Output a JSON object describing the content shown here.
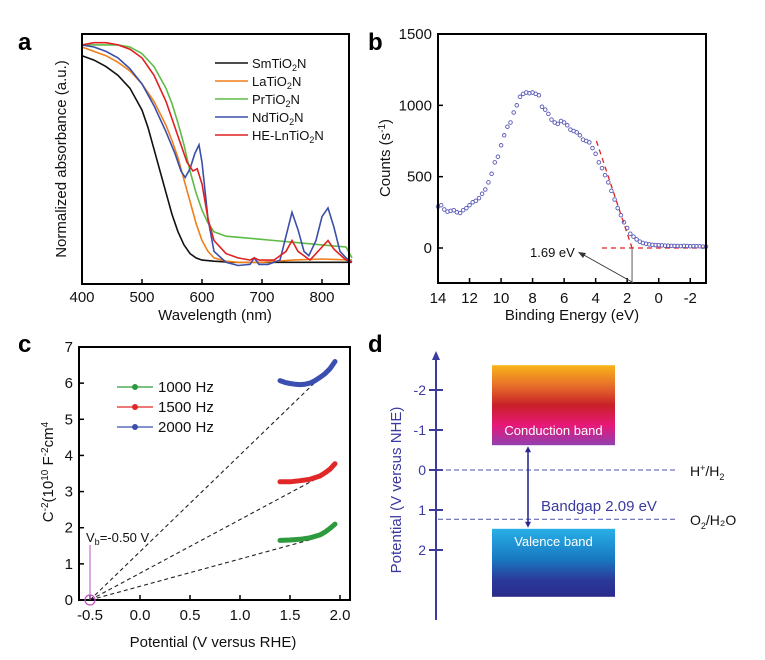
{
  "chart_data": [
    {
      "panel": "a",
      "type": "line",
      "xlabel": "Wavelength (nm)",
      "ylabel": "Normalized absorbance (a.u.)",
      "xlim": [
        400,
        850
      ],
      "ylim": [
        0,
        1.15
      ],
      "xticks": [
        "400",
        "500",
        "600",
        "700",
        "800"
      ],
      "legend_position": "top-right",
      "series": [
        {
          "name": "SmTiO2N",
          "label_main": "SmTiO",
          "label_sub": "2",
          "label_end": "N",
          "color": "#111111",
          "x": [
            400,
            420,
            440,
            460,
            480,
            500,
            510,
            520,
            530,
            540,
            550,
            560,
            570,
            580,
            590,
            600,
            620,
            650,
            700,
            750,
            800,
            850
          ],
          "y": [
            1.05,
            1.03,
            1.0,
            0.96,
            0.9,
            0.8,
            0.72,
            0.62,
            0.52,
            0.42,
            0.32,
            0.24,
            0.18,
            0.14,
            0.12,
            0.11,
            0.105,
            0.1,
            0.1,
            0.1,
            0.1,
            0.1
          ]
        },
        {
          "name": "LaTiO2N",
          "label_main": "LaTiO",
          "label_sub": "2",
          "label_end": "N",
          "color": "#f07f1a",
          "x": [
            400,
            420,
            440,
            460,
            480,
            500,
            520,
            540,
            550,
            560,
            570,
            580,
            590,
            600,
            610,
            620,
            640,
            660,
            700,
            750,
            800,
            850
          ],
          "y": [
            1.09,
            1.07,
            1.05,
            1.02,
            0.98,
            0.92,
            0.84,
            0.73,
            0.66,
            0.58,
            0.48,
            0.38,
            0.28,
            0.2,
            0.15,
            0.12,
            0.105,
            0.1,
            0.1,
            0.11,
            0.115,
            0.11
          ]
        },
        {
          "name": "PrTiO2N",
          "label_main": "PrTiO",
          "label_sub": "2",
          "label_end": "N",
          "color": "#5dbb46",
          "x": [
            400,
            420,
            440,
            460,
            480,
            500,
            520,
            540,
            550,
            560,
            570,
            580,
            590,
            600,
            610,
            620,
            640,
            680,
            720,
            760,
            800,
            840,
            850
          ],
          "y": [
            1.1,
            1.1,
            1.1,
            1.1,
            1.09,
            1.06,
            1.0,
            0.9,
            0.83,
            0.74,
            0.64,
            0.52,
            0.42,
            0.34,
            0.28,
            0.24,
            0.22,
            0.21,
            0.2,
            0.19,
            0.18,
            0.17,
            0.12
          ]
        },
        {
          "name": "NdTiO2N",
          "label_main": "NdTiO",
          "label_sub": "2",
          "label_end": "N",
          "color": "#3b4fa8",
          "x": [
            400,
            420,
            440,
            460,
            480,
            500,
            520,
            540,
            555,
            565,
            572,
            580,
            588,
            595,
            600,
            610,
            620,
            640,
            660,
            680,
            687,
            695,
            710,
            730,
            740,
            750,
            760,
            770,
            778,
            790,
            800,
            810,
            820,
            830,
            840,
            850
          ],
          "y": [
            1.1,
            1.09,
            1.07,
            1.04,
            0.99,
            0.92,
            0.82,
            0.7,
            0.6,
            0.52,
            0.49,
            0.53,
            0.6,
            0.64,
            0.56,
            0.3,
            0.15,
            0.1,
            0.085,
            0.09,
            0.12,
            0.09,
            0.09,
            0.11,
            0.22,
            0.33,
            0.25,
            0.15,
            0.13,
            0.2,
            0.31,
            0.35,
            0.26,
            0.15,
            0.12,
            0.1
          ]
        },
        {
          "name": "HE-LnTiO2N",
          "label_main": "HE-LnTiO",
          "label_sub": "2",
          "label_end": "N",
          "color": "#e02020",
          "x": [
            400,
            420,
            440,
            460,
            480,
            500,
            520,
            540,
            560,
            575,
            585,
            592,
            600,
            610,
            620,
            640,
            660,
            680,
            687,
            695,
            720,
            740,
            750,
            760,
            780,
            800,
            810,
            820,
            840,
            850
          ],
          "y": [
            1.1,
            1.11,
            1.11,
            1.1,
            1.08,
            1.04,
            0.96,
            0.84,
            0.68,
            0.56,
            0.52,
            0.53,
            0.46,
            0.3,
            0.2,
            0.14,
            0.12,
            0.11,
            0.12,
            0.11,
            0.11,
            0.15,
            0.2,
            0.15,
            0.11,
            0.17,
            0.2,
            0.16,
            0.11,
            0.1
          ]
        }
      ]
    },
    {
      "panel": "b",
      "type": "scatter",
      "xlabel": "Binding Energy (eV)",
      "ylabel_main": "Counts (s",
      "ylabel_sup": "-1",
      "ylabel_end": ")",
      "xlim": [
        14,
        -3
      ],
      "ylim": [
        -250,
        1500
      ],
      "xticks": [
        "14",
        "12",
        "10",
        "8",
        "6",
        "4",
        "2",
        "0",
        "-2"
      ],
      "yticks": [
        "0",
        "500",
        "1000",
        "1500"
      ],
      "marker_color": "#5a5ab8",
      "fit_color": "#e02020",
      "annotation": "1.69 eV",
      "onset_ev": 1.69,
      "points": {
        "x": [
          14,
          13.8,
          13.6,
          13.4,
          13.2,
          13.0,
          12.8,
          12.6,
          12.4,
          12.2,
          12.0,
          11.8,
          11.6,
          11.4,
          11.2,
          11.0,
          10.8,
          10.6,
          10.4,
          10.2,
          10.0,
          9.8,
          9.6,
          9.4,
          9.2,
          9.0,
          8.8,
          8.6,
          8.4,
          8.2,
          8.0,
          7.8,
          7.6,
          7.4,
          7.2,
          7.0,
          6.8,
          6.6,
          6.4,
          6.2,
          6.0,
          5.8,
          5.6,
          5.4,
          5.2,
          5.0,
          4.8,
          4.6,
          4.4,
          4.2,
          4.0,
          3.8,
          3.6,
          3.4,
          3.2,
          3.0,
          2.8,
          2.6,
          2.4,
          2.2,
          2.0,
          1.8,
          1.6,
          1.4,
          1.2,
          1.0,
          0.8,
          0.6,
          0.4,
          0.2,
          0.0,
          -0.2,
          -0.4,
          -0.6,
          -0.8,
          -1.0,
          -1.2,
          -1.4,
          -1.6,
          -1.8,
          -2.0,
          -2.2,
          -2.4,
          -2.6,
          -2.8,
          -3.0
        ],
        "y": [
          290,
          300,
          270,
          255,
          260,
          265,
          250,
          245,
          265,
          280,
          300,
          320,
          330,
          350,
          380,
          410,
          460,
          520,
          600,
          640,
          720,
          790,
          850,
          880,
          950,
          1000,
          1060,
          1080,
          1090,
          1085,
          1090,
          1080,
          1070,
          990,
          970,
          940,
          900,
          880,
          870,
          890,
          880,
          860,
          830,
          820,
          810,
          790,
          760,
          750,
          740,
          700,
          660,
          600,
          560,
          510,
          460,
          400,
          340,
          280,
          230,
          180,
          140,
          100,
          80,
          60,
          45,
          35,
          30,
          25,
          22,
          20,
          20,
          18,
          17,
          16,
          15,
          15,
          14,
          13,
          15,
          14,
          12,
          13,
          12,
          12,
          10,
          10
        ]
      },
      "fit_line": {
        "x": [
          3.95,
          2.0
        ],
        "y": [
          750,
          50
        ]
      },
      "baseline": {
        "x": [
          3.6,
          -3.0
        ],
        "y": [
          0,
          0
        ]
      }
    },
    {
      "panel": "c",
      "type": "scatter",
      "xlabel": "Potential (V versus RHE)",
      "ylabel": "C^-2 (10^10 F^-2 cm^4)",
      "ylabel_parts": [
        "C",
        "-2",
        "(10",
        "10",
        " F",
        "-2",
        "cm",
        "4"
      ],
      "xlim": [
        -0.58,
        2.05
      ],
      "ylim": [
        0,
        7
      ],
      "xticks": [
        "-0.5",
        "0.0",
        "0.5",
        "1.0",
        "1.5",
        "2.0"
      ],
      "yticks": [
        "0",
        "1",
        "2",
        "3",
        "4",
        "5",
        "6",
        "7"
      ],
      "legend_position": "top-left",
      "annotation": "Vb=-0.50 V",
      "annotation_main": "V",
      "annotation_sub": "b",
      "annotation_end": "=-0.50 V",
      "flatband_v": -0.5,
      "annotation_color": "#c050c0",
      "series": [
        {
          "name": "1000 Hz",
          "color": "#2e9a3e",
          "x": [
            1.4,
            1.5,
            1.6,
            1.7,
            1.8,
            1.85,
            1.9,
            1.95
          ],
          "y": [
            1.65,
            1.66,
            1.68,
            1.72,
            1.8,
            1.88,
            1.98,
            2.1
          ],
          "fit": {
            "x": [
              -0.5,
              1.72
            ],
            "y": [
              0,
              1.68
            ]
          }
        },
        {
          "name": "1500 Hz",
          "color": "#e02828",
          "x": [
            1.4,
            1.5,
            1.6,
            1.7,
            1.8,
            1.85,
            1.9,
            1.95
          ],
          "y": [
            3.27,
            3.27,
            3.3,
            3.34,
            3.43,
            3.52,
            3.62,
            3.77
          ],
          "fit": {
            "x": [
              -0.5,
              1.78
            ],
            "y": [
              0,
              3.38
            ]
          }
        },
        {
          "name": "2000 Hz",
          "color": "#3a4fb0",
          "x": [
            1.4,
            1.45,
            1.5,
            1.55,
            1.6,
            1.65,
            1.7,
            1.75,
            1.8,
            1.85,
            1.9,
            1.95
          ],
          "y": [
            6.07,
            6.02,
            5.99,
            5.97,
            5.96,
            5.97,
            6.0,
            6.07,
            6.16,
            6.26,
            6.4,
            6.6
          ],
          "fit": {
            "x": [
              -0.5,
              1.78
            ],
            "y": [
              0,
              6.1
            ]
          }
        }
      ]
    },
    {
      "panel": "d",
      "type": "diagram",
      "ylabel": "Potential (V versus NHE)",
      "yticks": [
        "-2",
        "-1",
        "0",
        "1",
        "2"
      ],
      "conduction_band_label": "Conduction band",
      "valence_band_label": "Valence band",
      "cb_range_v": [
        -2.62,
        -0.62
      ],
      "vb_range_v": [
        1.47,
        3.17
      ],
      "bandgap_label": "Bandgap 2.09 eV",
      "bandgap_ev": 2.09,
      "levels": [
        {
          "label_main": "H",
          "label_sup": "+",
          "label_mid": "/H",
          "label_sub": "2",
          "label_end": "",
          "value_v": 0
        },
        {
          "label_main": "O",
          "label_sup": "",
          "label_mid": "",
          "label_sub": "2",
          "label_end": "/H₂O",
          "value_v": 1.23
        }
      ],
      "axis_color": "#3a3aa0"
    }
  ],
  "panel_letters": [
    "a",
    "b",
    "c",
    "d"
  ]
}
